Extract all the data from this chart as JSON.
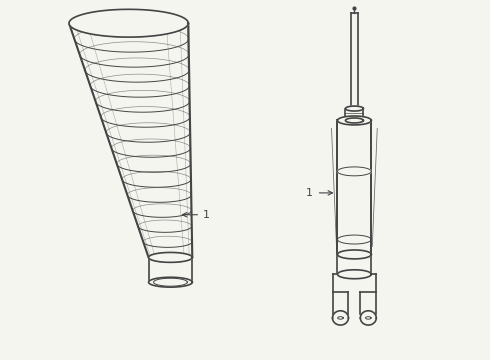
{
  "bg_color": "#f5f5f0",
  "line_color": "#444444",
  "lw": 1.2,
  "lw_thin": 0.7,
  "label_color": "#222222",
  "label_fontsize": 8,
  "fig_width": 4.9,
  "fig_height": 3.6,
  "dpi": 100
}
